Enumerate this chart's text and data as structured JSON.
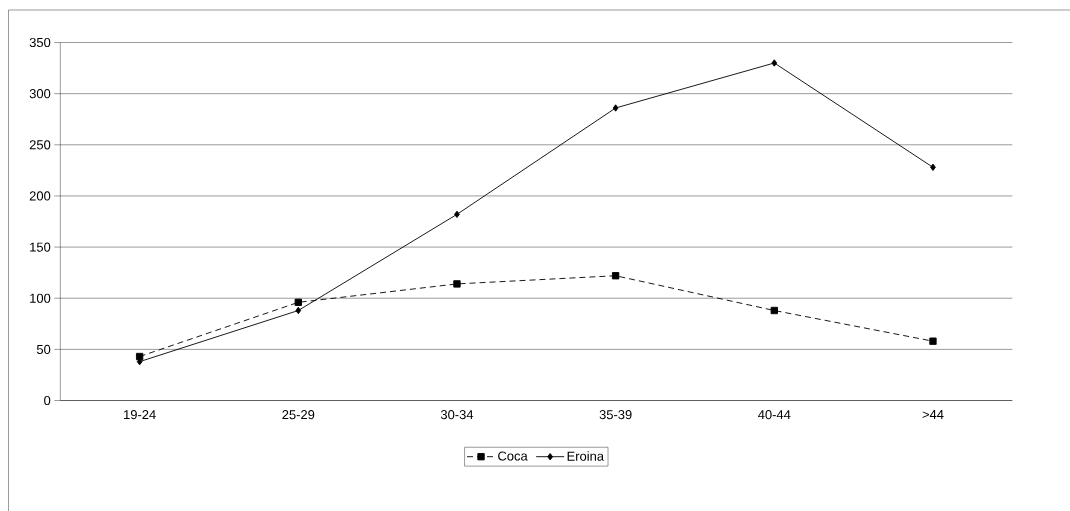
{
  "chart_data": {
    "type": "line",
    "categories": [
      "19-24",
      "25-29",
      "30-34",
      "35-39",
      "40-44",
      ">44"
    ],
    "series": [
      {
        "name": "Coca",
        "color": "#000000",
        "marker": "square",
        "line_style": "dashed",
        "values": [
          43,
          96,
          114,
          122,
          88,
          58
        ]
      },
      {
        "name": "Eroina",
        "color": "#000000",
        "marker": "diamond",
        "line_style": "solid",
        "values": [
          38,
          88,
          182,
          286,
          330,
          228
        ]
      }
    ],
    "ylim": [
      0,
      350
    ],
    "yticks": [
      0,
      50,
      100,
      150,
      200,
      250,
      300,
      350
    ],
    "grid": "y",
    "legend": "bottom"
  }
}
